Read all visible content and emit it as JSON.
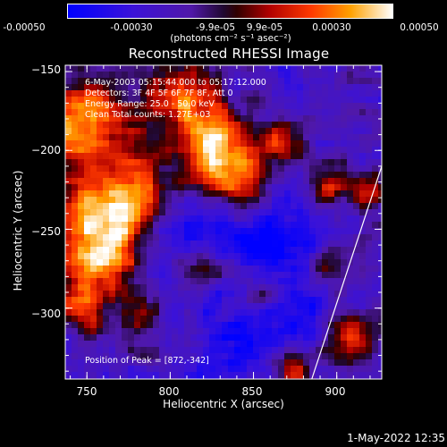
{
  "colorbar": {
    "ticks": [
      "-0.00050",
      "-0.00030",
      "-9.9e-05",
      "9.9e-05",
      "0.00030",
      "0.00050"
    ],
    "units": "(photons cm⁻² s⁻¹ asec⁻²)"
  },
  "chart_data": {
    "type": "heatmap",
    "title": "Reconstructed RHESSI Image",
    "xlabel": "Heliocentric X (arcsec)",
    "ylabel": "Heliocentric Y (arcsec)",
    "xlim": [
      737,
      927
    ],
    "ylim": [
      -345,
      -146
    ],
    "x_ticks": [
      750,
      800,
      850,
      900
    ],
    "y_ticks": [
      -150,
      -200,
      -250,
      -300
    ],
    "x_tick_labels": [
      "750",
      "800",
      "850",
      "900"
    ],
    "y_tick_labels": [
      "−150",
      "−200",
      "−250",
      "−300"
    ],
    "colorscale_range": [
      -0.0005,
      0.0005
    ],
    "annotations": [
      "6-May-2003 05:15:44.000 to 05:17:12.000",
      "Detectors: 3F 4F 5F 6F 7F 8F, Att 0",
      "Energy Range: 25.0 - 50.0 keV",
      "Clean     Total counts: 1.27E+03"
    ],
    "peak_label": "Position of Peak = [872,-342]",
    "peak": [
      872,
      -342
    ],
    "limb_line": {
      "x": [
        885,
        927
      ],
      "y": [
        -345,
        -210
      ]
    }
  },
  "footer": "1-May-2022 12:35"
}
